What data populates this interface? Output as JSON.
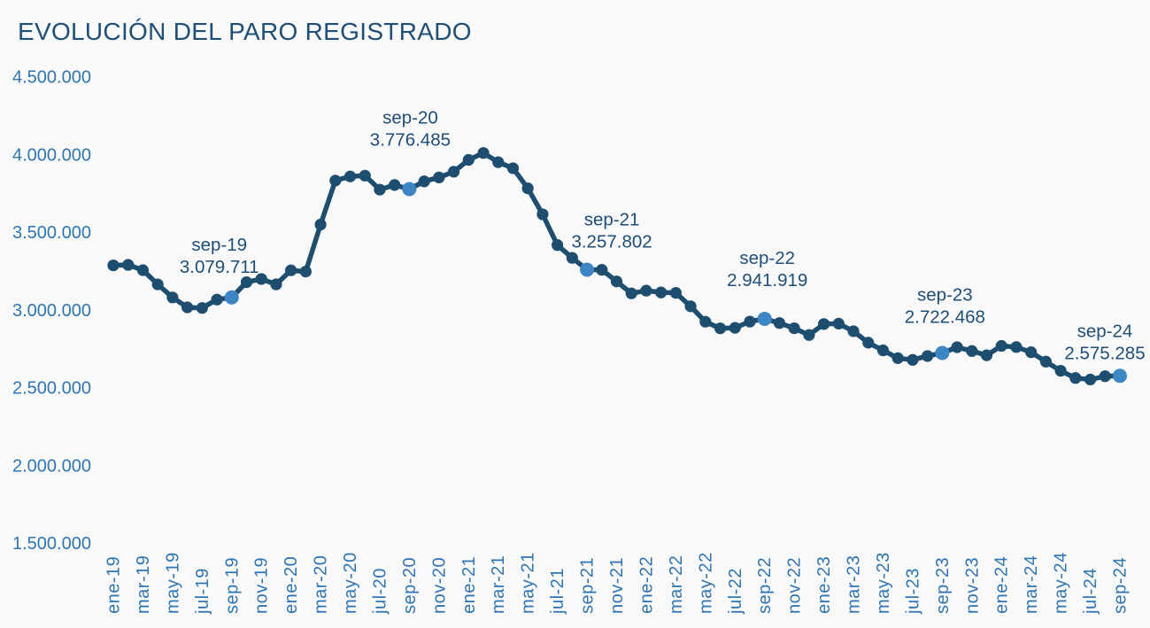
{
  "title": "EVOLUCIÓN DEL PARO REGISTRADO",
  "colors": {
    "background": "#F9F9F9",
    "title_text": "#1F4E79",
    "axis_label": "#2E75B6",
    "line": "#1E4E6F",
    "marker": "#1E4E6F",
    "highlight_marker": "#3C86C6",
    "annotation_text": "#1F4E79"
  },
  "chart_data": {
    "type": "line",
    "title": "EVOLUCIÓN DEL PARO REGISTRADO",
    "xlabel": "",
    "ylabel": "",
    "grid": "off",
    "legend": "none",
    "ylim": [
      1500000,
      4500000
    ],
    "y_ticks": [
      4500000,
      4000000,
      3500000,
      3000000,
      2500000,
      2000000,
      1500000
    ],
    "y_tick_labels": [
      "4.500.000",
      "4.000.000",
      "3.500.000",
      "3.000.000",
      "2.500.000",
      "2.000.000",
      "1.500.000"
    ],
    "x_tick_step": 2,
    "x": [
      "ene-19",
      "feb-19",
      "mar-19",
      "abr-19",
      "may-19",
      "jun-19",
      "jul-19",
      "ago-19",
      "sep-19",
      "oct-19",
      "nov-19",
      "dic-19",
      "ene-20",
      "feb-20",
      "mar-20",
      "abr-20",
      "may-20",
      "jun-20",
      "jul-20",
      "ago-20",
      "sep-20",
      "oct-20",
      "nov-20",
      "dic-20",
      "ene-21",
      "feb-21",
      "mar-21",
      "abr-21",
      "may-21",
      "jun-21",
      "jul-21",
      "ago-21",
      "sep-21",
      "oct-21",
      "nov-21",
      "dic-21",
      "ene-22",
      "feb-22",
      "mar-22",
      "abr-22",
      "may-22",
      "jun-22",
      "jul-22",
      "ago-22",
      "sep-22",
      "oct-22",
      "nov-22",
      "dic-22",
      "ene-23",
      "feb-23",
      "mar-23",
      "abr-23",
      "may-23",
      "jun-23",
      "jul-23",
      "ago-23",
      "sep-23",
      "oct-23",
      "nov-23",
      "dic-23",
      "ene-24",
      "feb-24",
      "mar-24",
      "abr-24",
      "may-24",
      "jun-24",
      "jul-24",
      "ago-24",
      "sep-24"
    ],
    "values": [
      3285761,
      3289040,
      3255084,
      3163566,
      3079491,
      3015686,
      3011433,
      3065804,
      3079711,
      3177659,
      3198184,
      3163605,
      3253853,
      3246047,
      3548312,
      3831203,
      3857776,
      3862883,
      3773034,
      3802814,
      3776485,
      3826043,
      3851312,
      3888137,
      3964353,
      4008789,
      3949640,
      3910628,
      3781250,
      3614339,
      3416498,
      3333915,
      3257802,
      3257068,
      3182687,
      3105905,
      3123078,
      3111684,
      3108763,
      3022503,
      2922991,
      2880582,
      2883812,
      2924240,
      2941919,
      2914892,
      2881380,
      2837653,
      2908397,
      2911015,
      2862260,
      2788370,
      2739110,
      2688842,
      2677874,
      2702700,
      2722468,
      2759404,
      2734831,
      2707456,
      2767860,
      2760408,
      2727003,
      2666500,
      2607850,
      2561067,
      2551319,
      2572561,
      2575285
    ],
    "annotations": [
      {
        "index": 8,
        "label": "sep-19",
        "value": 3079711,
        "value_text": "3.079.711"
      },
      {
        "index": 20,
        "label": "sep-20",
        "value": 3776485,
        "value_text": "3.776.485"
      },
      {
        "index": 32,
        "label": "sep-21",
        "value": 3257802,
        "value_text": "3.257.802"
      },
      {
        "index": 44,
        "label": "sep-22",
        "value": 2941919,
        "value_text": "2.941.919"
      },
      {
        "index": 56,
        "label": "sep-23",
        "value": 2722468,
        "value_text": "2.722.468"
      },
      {
        "index": 68,
        "label": "sep-24",
        "value": 2575285,
        "value_text": "2.575.285"
      }
    ]
  }
}
